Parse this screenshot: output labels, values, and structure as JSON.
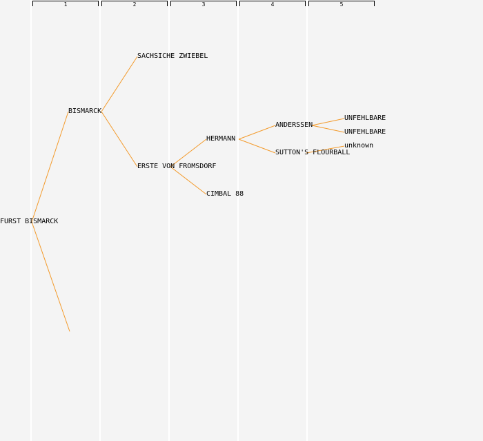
{
  "generations": {
    "headers": [
      "1",
      "2",
      "3",
      "4",
      "5"
    ]
  },
  "pedigree": {
    "nodes": {
      "root": "FURST BISMARCK",
      "bismarck": "BISMARCK",
      "sachsiche": "SACHSICHE ZWIEBEL",
      "erste": "ERSTE VON FROMSDORF",
      "hermann": "HERMANN",
      "cimbal": "CIMBAL 88",
      "anderssen": "ANDERSSEN",
      "suttons": "SUTTON'S FLOURBALL",
      "unfehlbare1": "UNFEHLBARE",
      "unfehlbare2": "UNFEHLBARE",
      "unknown": "unknown"
    },
    "edges": [
      [
        "root",
        "bismarck"
      ],
      [
        "root",
        "missing"
      ],
      [
        "bismarck",
        "sachsiche"
      ],
      [
        "bismarck",
        "erste"
      ],
      [
        "erste",
        "hermann"
      ],
      [
        "erste",
        "cimbal"
      ],
      [
        "hermann",
        "anderssen"
      ],
      [
        "hermann",
        "suttons"
      ],
      [
        "anderssen",
        "unfehlbare1"
      ],
      [
        "anderssen",
        "unfehlbare2"
      ],
      [
        "suttons",
        "unknown"
      ]
    ],
    "edge_color": "#f39a2a"
  }
}
